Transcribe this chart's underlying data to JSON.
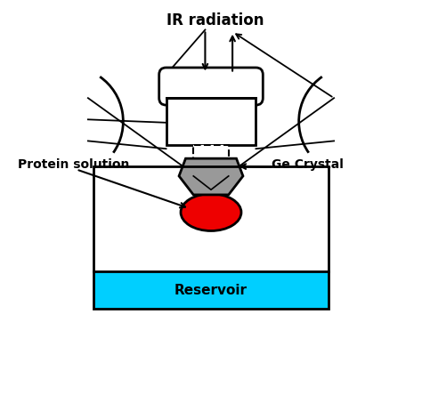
{
  "title": "IR radiation",
  "label_protein": "Protein solution",
  "label_ge": "Ge Crystal",
  "label_reservoir": "Reservoir",
  "bg_color": "#ffffff",
  "reservoir_color": "#00cfff",
  "crystal_color": "#999999",
  "protein_color": "#ee0000",
  "lw": 2.0,
  "fig_width": 4.74,
  "fig_height": 4.44,
  "dpi": 100
}
